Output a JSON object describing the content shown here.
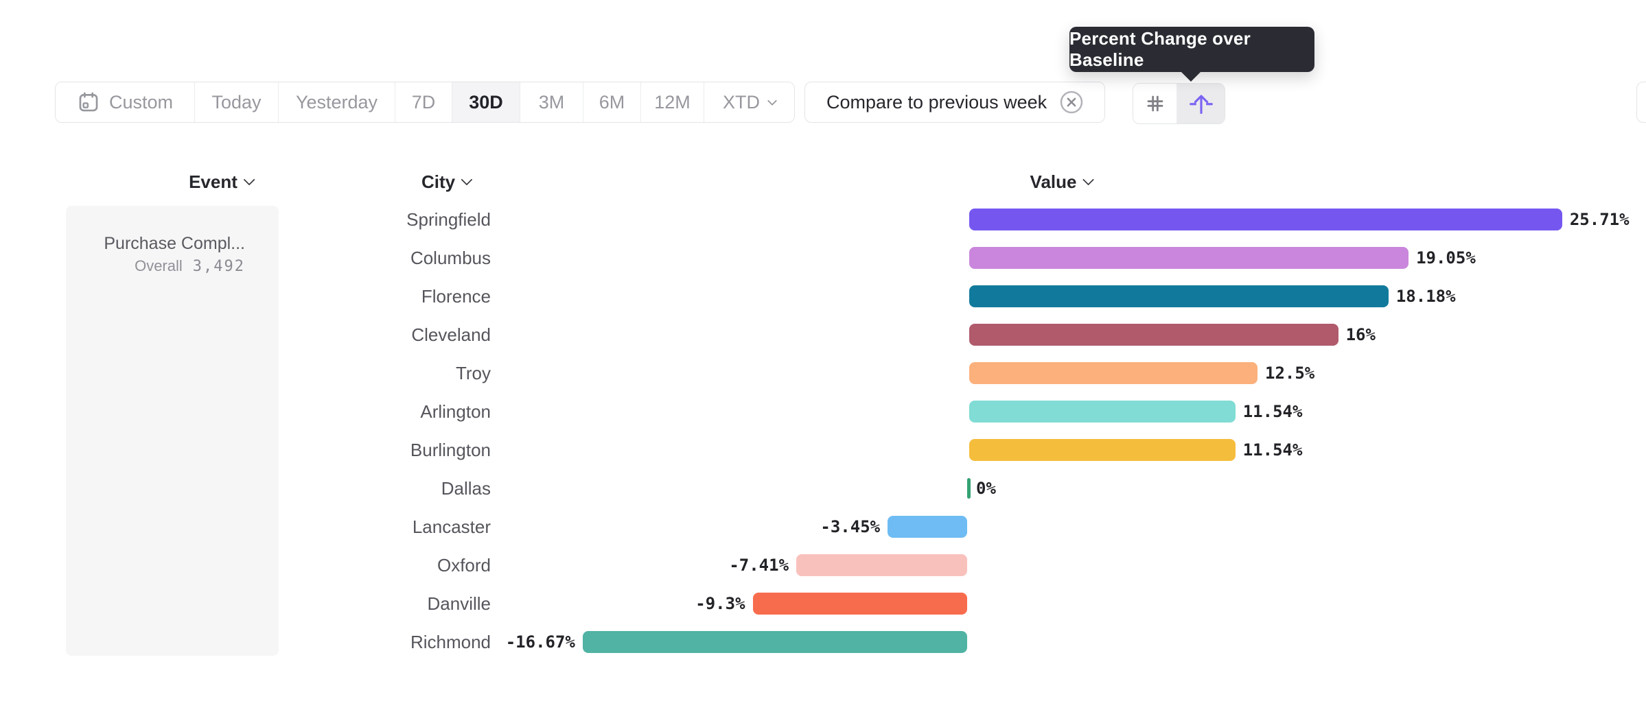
{
  "tooltip": {
    "text": "Percent Change over Baseline"
  },
  "date_toolbar": {
    "items": [
      {
        "label": "Custom",
        "icon": "calendar-icon",
        "selected": false
      },
      {
        "label": "Today",
        "selected": false
      },
      {
        "label": "Yesterday",
        "selected": false
      },
      {
        "label": "7D",
        "selected": false
      },
      {
        "label": "30D",
        "selected": true
      },
      {
        "label": "3M",
        "selected": false
      },
      {
        "label": "6M",
        "selected": false
      },
      {
        "label": "12M",
        "selected": false
      },
      {
        "label": "XTD",
        "has_chevron": true,
        "selected": false
      }
    ]
  },
  "compare_chip": {
    "label": "Compare to previous week",
    "close_icon": "circled-x-icon"
  },
  "view_toggle": {
    "options": [
      {
        "icon": "number-sign-icon",
        "selected": false
      },
      {
        "icon": "baseline-arrow-icon",
        "selected": true
      }
    ],
    "accent_color": "#7c64f2",
    "inactive_color": "#808186"
  },
  "columns": {
    "event": {
      "label": "Event"
    },
    "city": {
      "label": "City"
    },
    "value": {
      "label": "Value"
    }
  },
  "event_card": {
    "name": "Purchase Compl...",
    "overall_label": "Overall",
    "overall_value": "3,492"
  },
  "chart_data": {
    "type": "bar",
    "orientation": "horizontal",
    "title": "Percent Change over Baseline",
    "xlabel": "",
    "ylabel": "City",
    "xlim": [
      -16.67,
      25.71
    ],
    "baseline": 0,
    "grid": false,
    "categories": [
      "Springfield",
      "Columbus",
      "Florence",
      "Cleveland",
      "Troy",
      "Arlington",
      "Burlington",
      "Dallas",
      "Lancaster",
      "Oxford",
      "Danville",
      "Richmond"
    ],
    "values": [
      25.71,
      19.05,
      18.18,
      16,
      12.5,
      11.54,
      11.54,
      0,
      -3.45,
      -7.41,
      -9.3,
      -16.67
    ],
    "labels": [
      "25.71%",
      "19.05%",
      "18.18%",
      "16%",
      "12.5%",
      "11.54%",
      "11.54%",
      "0%",
      "-3.45%",
      "-7.41%",
      "-9.3%",
      "-16.67%"
    ],
    "colors": [
      "#7557f0",
      "#c986dc",
      "#117a9c",
      "#b05a6c",
      "#fcb07c",
      "#80dcd4",
      "#f5bd3c",
      "#34a273",
      "#6ebcf3",
      "#f9c1bc",
      "#f86c4e",
      "#50b3a3"
    ]
  }
}
